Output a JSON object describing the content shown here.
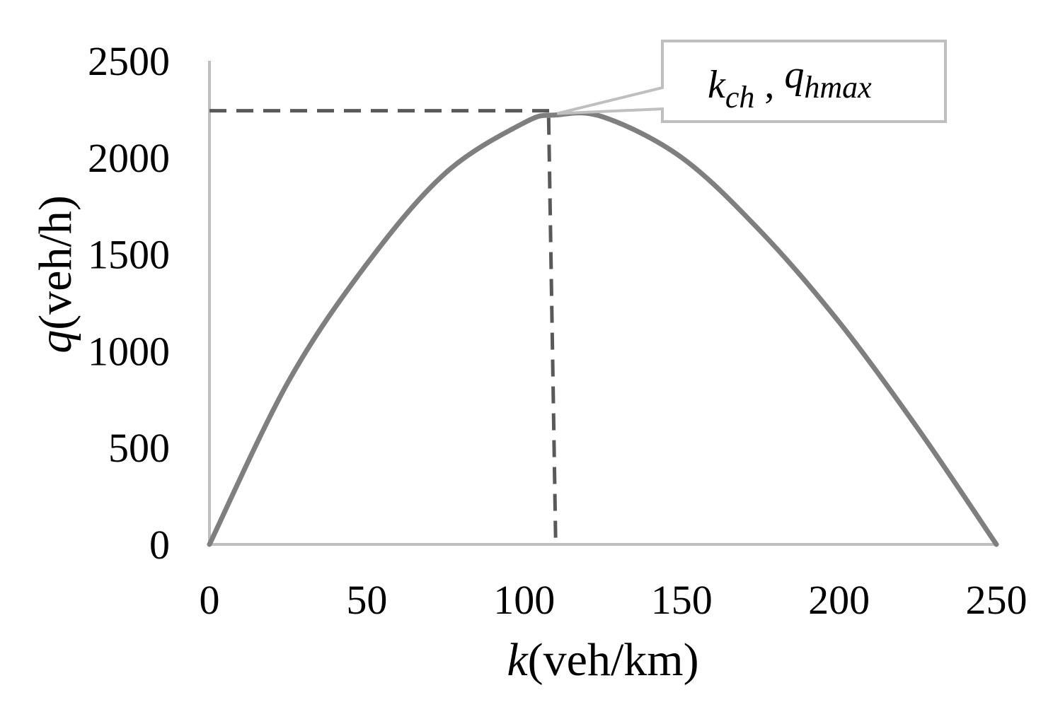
{
  "chart_data": {
    "type": "line",
    "xlabel": {
      "var": "k",
      "unit": "(veh/km)"
    },
    "ylabel": {
      "var": "q",
      "unit": "(veh/h)"
    },
    "xlim": [
      0,
      250
    ],
    "ylim": [
      0,
      2500
    ],
    "xticks": [
      0,
      50,
      100,
      150,
      200,
      250
    ],
    "yticks": [
      0,
      500,
      1000,
      1500,
      2000,
      2500
    ],
    "grid": false,
    "series": [
      {
        "curve": "parabola",
        "x": [
          0,
          25,
          50,
          75,
          100,
          110,
          125,
          150,
          175,
          200,
          225,
          250
        ],
        "y": [
          0,
          840,
          1450,
          1920,
          2180,
          2220,
          2210,
          2000,
          1620,
          1150,
          600,
          0
        ]
      }
    ],
    "peak": {
      "k": 110,
      "q": 2220
    },
    "annotation": {
      "text_parts": [
        {
          "t": "k",
          "style": "italic",
          "sub": false
        },
        {
          "t": "ch",
          "style": "italic",
          "sub": true
        },
        {
          "t": " , ",
          "style": "normal",
          "sub": false
        },
        {
          "t": "q",
          "style": "italic",
          "sub": false
        },
        {
          "t": "hmax",
          "style": "italic",
          "sub": true
        }
      ]
    },
    "colors": {
      "curve": "#7f7f7f",
      "axis": "#bfbfbf",
      "dashed": "#595959",
      "callout_border": "#bfbfbf"
    }
  }
}
